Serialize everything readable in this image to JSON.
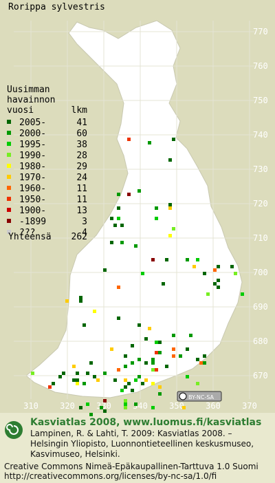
{
  "title": "Rorippa sylvestris",
  "legend": {
    "heading": [
      "Uusimman",
      "havainnon",
      "vuosi"
    ],
    "count_heading": "lkm",
    "entries": [
      {
        "label": "2005-",
        "count": 41,
        "color": "#006600"
      },
      {
        "label": "2000-",
        "count": 60,
        "color": "#009900"
      },
      {
        "label": "1995-",
        "count": 38,
        "color": "#00cc00"
      },
      {
        "label": "1990-",
        "count": 28,
        "color": "#77ee22"
      },
      {
        "label": "1980-",
        "count": 29,
        "color": "#ffff00"
      },
      {
        "label": "1970-",
        "count": 24,
        "color": "#ffcc00"
      },
      {
        "label": "1960-",
        "count": 11,
        "color": "#ff6600"
      },
      {
        "label": "1950-",
        "count": 11,
        "color": "#ee3300"
      },
      {
        "label": "1900-",
        "count": 13,
        "color": "#cc0000"
      },
      {
        "label": "-1899",
        "count": 3,
        "color": "#880000"
      },
      {
        "label": "???",
        "count": 4,
        "color": "#cccccc"
      }
    ],
    "total_label": "Yhteensä",
    "total": 262
  },
  "grid": {
    "y_labels": [
      770,
      760,
      750,
      740,
      730,
      720,
      710,
      700,
      690,
      680,
      670
    ],
    "x_labels": [
      310,
      320,
      330,
      340,
      350,
      360,
      370
    ]
  },
  "license_badge": "BY-NC-SA",
  "footer": {
    "title": "Kasviatlas 2008, www.luomus.fi/kasviatlas",
    "citation": [
      "Lampinen, R. & Lahti, T. 2009: Kasviatlas 2008. –",
      "Helsingin Yliopisto, Luonnontieteellinen keskusmuseo,",
      "Kasvimuseo, Helsinki."
    ],
    "license": [
      "Creative Commons Nimeä-Epäkaupallinen-Tarttuva 1.0 Suomi",
      "http://creativecommons.org/licenses/by-nc-sa/1.0/fi"
    ]
  }
}
